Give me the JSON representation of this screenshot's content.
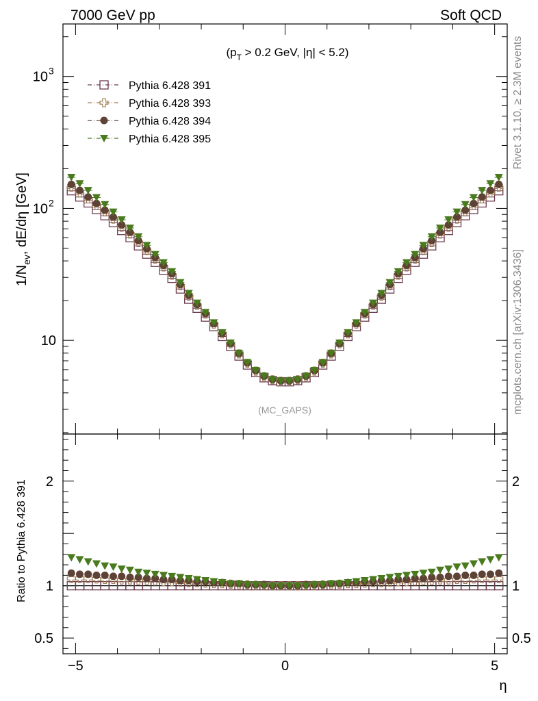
{
  "header": {
    "left": "7000 GeV pp",
    "right": "Soft QCD"
  },
  "side_labels": {
    "rivet": "Rivet 3.1.10, ≥ 2.3M events",
    "source": "mcplots.cern.ch [arXiv:1306.3436]"
  },
  "chart_data": {
    "type": "scatter",
    "cut_label_parts": [
      "(p",
      "T",
      " > 0.2 GeV, |η| < 5.2)"
    ],
    "analysis_label": "(MC_GAPS)",
    "ylabel_main_parts": [
      "1/N",
      "ev",
      ", dE/dη [GeV]"
    ],
    "ylabel_ratio": "Ratio to Pythia 6.428 391",
    "xlabel": "η",
    "xlim": [
      -5.3,
      5.3
    ],
    "ylim_main": [
      1.95,
      2500
    ],
    "ylog": true,
    "ylim_ratio": [
      0.35,
      2.45
    ],
    "x_ticks": [
      "−5",
      "0",
      "5"
    ],
    "y_main_ticks": [
      {
        "v": 1000,
        "base": "10",
        "exp": "3"
      },
      {
        "v": 100,
        "base": "10",
        "exp": "2"
      },
      {
        "v": 10,
        "base": "10",
        "exp": ""
      }
    ],
    "y_ratio_ticks": [
      {
        "v": 2,
        "label": "2"
      },
      {
        "v": 1,
        "label": "1"
      },
      {
        "v": 0.5,
        "label": "0.5"
      }
    ],
    "legend_position": "top-left",
    "x": [
      -5.1,
      -4.9,
      -4.7,
      -4.5,
      -4.3,
      -4.1,
      -3.9,
      -3.7,
      -3.5,
      -3.3,
      -3.1,
      -2.9,
      -2.7,
      -2.5,
      -2.3,
      -2.1,
      -1.9,
      -1.7,
      -1.5,
      -1.3,
      -1.1,
      -0.9,
      -0.7,
      -0.5,
      -0.3,
      -0.1,
      0.1,
      0.3,
      0.5,
      0.7,
      0.9,
      1.1,
      1.3,
      1.5,
      1.7,
      1.9,
      2.1,
      2.3,
      2.5,
      2.7,
      2.9,
      3.1,
      3.3,
      3.5,
      3.7,
      3.9,
      4.1,
      4.3,
      4.5,
      4.7,
      4.9,
      5.1
    ],
    "series": [
      {
        "name": "Pythia 6.428 391",
        "color": "#6b3a4e",
        "marker": "open-square",
        "values": [
          136,
          122,
          110,
          98,
          88,
          78,
          68,
          60,
          52,
          45,
          39,
          34,
          29.5,
          24.5,
          20.5,
          17.5,
          15,
          12.7,
          10.7,
          9.0,
          7.6,
          6.5,
          5.7,
          5.2,
          4.95,
          4.85,
          4.85,
          4.95,
          5.2,
          5.7,
          6.5,
          7.6,
          9.0,
          10.7,
          12.7,
          15,
          17.5,
          20.5,
          24.5,
          29.5,
          34,
          39,
          45,
          52,
          60,
          68,
          78,
          88,
          98,
          110,
          122,
          136
        ],
        "ratio": [
          1,
          1,
          1,
          1,
          1,
          1,
          1,
          1,
          1,
          1,
          1,
          1,
          1,
          1,
          1,
          1,
          1,
          1,
          1,
          1,
          1,
          1,
          1,
          1,
          1,
          1,
          1,
          1,
          1,
          1,
          1,
          1,
          1,
          1,
          1,
          1,
          1,
          1,
          1,
          1,
          1,
          1,
          1,
          1,
          1,
          1,
          1,
          1,
          1,
          1,
          1,
          1
        ]
      },
      {
        "name": "Pythia 6.428 393",
        "color": "#9c7a50",
        "marker": "open-cross",
        "values": [
          145,
          131,
          118,
          105,
          94,
          83,
          72,
          64,
          55,
          48,
          41.3,
          36,
          31.2,
          25.9,
          21.6,
          18.4,
          15.8,
          13.3,
          11.2,
          9.4,
          7.9,
          6.7,
          5.85,
          5.3,
          5.02,
          4.9,
          4.9,
          5.02,
          5.3,
          5.85,
          6.7,
          7.9,
          9.4,
          11.2,
          13.3,
          15.8,
          18.4,
          21.6,
          25.9,
          31.2,
          36,
          41.3,
          48,
          55,
          64,
          72,
          83,
          94,
          105,
          118,
          131,
          145
        ],
        "ratio": [
          1.07,
          1.07,
          1.07,
          1.065,
          1.06,
          1.06,
          1.055,
          1.055,
          1.05,
          1.05,
          1.045,
          1.04,
          1.04,
          1.035,
          1.03,
          1.03,
          1.025,
          1.02,
          1.02,
          1.015,
          1.01,
          1.01,
          1.005,
          1.005,
          1.0,
          1.0,
          1.0,
          1.0,
          1.005,
          1.005,
          1.01,
          1.01,
          1.015,
          1.02,
          1.02,
          1.025,
          1.03,
          1.03,
          1.035,
          1.04,
          1.04,
          1.045,
          1.05,
          1.05,
          1.055,
          1.055,
          1.06,
          1.06,
          1.065,
          1.07,
          1.07,
          1.07
        ]
      },
      {
        "name": "Pythia 6.428 394",
        "color": "#5e4235",
        "marker": "filled-circle",
        "values": [
          152,
          137,
          122,
          109,
          97,
          86,
          75,
          66,
          57,
          49.5,
          42.5,
          37,
          32,
          26.5,
          22,
          18.7,
          16,
          13.4,
          11.3,
          9.45,
          7.95,
          6.75,
          5.9,
          5.35,
          5.05,
          4.92,
          4.92,
          5.05,
          5.35,
          5.9,
          6.75,
          7.95,
          9.45,
          11.3,
          13.4,
          16,
          18.7,
          22,
          26.5,
          32,
          37,
          42.5,
          49.5,
          57,
          66,
          75,
          86,
          97,
          109,
          122,
          137,
          152
        ],
        "ratio": [
          1.12,
          1.11,
          1.11,
          1.1,
          1.1,
          1.09,
          1.09,
          1.08,
          1.08,
          1.07,
          1.07,
          1.06,
          1.06,
          1.05,
          1.05,
          1.04,
          1.04,
          1.03,
          1.03,
          1.02,
          1.02,
          1.01,
          1.01,
          1.01,
          1.0,
          1.0,
          1.0,
          1.0,
          1.01,
          1.01,
          1.01,
          1.02,
          1.02,
          1.03,
          1.03,
          1.04,
          1.04,
          1.05,
          1.05,
          1.06,
          1.06,
          1.07,
          1.07,
          1.08,
          1.08,
          1.09,
          1.09,
          1.1,
          1.1,
          1.11,
          1.11,
          1.12
        ]
      },
      {
        "name": "Pythia 6.428 395",
        "color": "#4a7a1e",
        "marker": "filled-triangle-down",
        "values": [
          172,
          154,
          137,
          121,
          107,
          94,
          82,
          71,
          61,
          52.5,
          44.8,
          38.8,
          33.2,
          27.4,
          22.7,
          19.2,
          16.3,
          13.6,
          11.45,
          9.55,
          8.0,
          6.8,
          5.92,
          5.36,
          5.05,
          4.92,
          4.92,
          5.05,
          5.36,
          5.92,
          6.8,
          8.0,
          9.55,
          11.45,
          13.6,
          16.3,
          19.2,
          22.7,
          27.4,
          33.2,
          38.8,
          44.8,
          52.5,
          61,
          71,
          82,
          94,
          107,
          121,
          137,
          154,
          172
        ],
        "ratio": [
          1.27,
          1.25,
          1.23,
          1.21,
          1.19,
          1.18,
          1.16,
          1.15,
          1.13,
          1.12,
          1.11,
          1.1,
          1.09,
          1.08,
          1.07,
          1.06,
          1.05,
          1.04,
          1.03,
          1.02,
          1.02,
          1.01,
          1.01,
          1.0,
          1.0,
          1.0,
          1.0,
          1.0,
          1.0,
          1.01,
          1.01,
          1.02,
          1.02,
          1.03,
          1.04,
          1.05,
          1.06,
          1.07,
          1.08,
          1.09,
          1.1,
          1.11,
          1.12,
          1.13,
          1.15,
          1.16,
          1.18,
          1.19,
          1.21,
          1.23,
          1.25,
          1.27
        ]
      }
    ]
  }
}
